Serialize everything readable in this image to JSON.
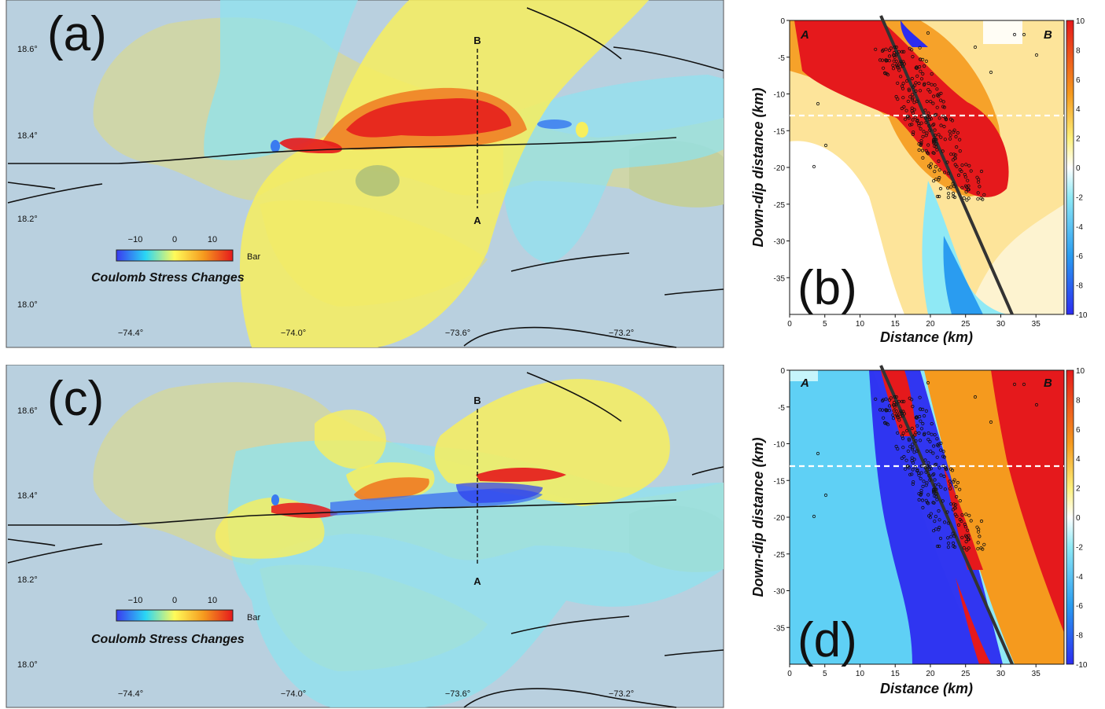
{
  "panels": {
    "a": {
      "label": "(a)",
      "colorbar_ticks": [
        "−10",
        "0",
        "10"
      ],
      "colorbar_unit": "Bar",
      "colorbar_title": "Coulomb Stress Changes"
    },
    "c": {
      "label": "(c)",
      "colorbar_ticks": [
        "−10",
        "0",
        "10"
      ],
      "colorbar_unit": "Bar",
      "colorbar_title": "Coulomb Stress Changes"
    },
    "b": {
      "label": "(b)"
    },
    "d": {
      "label": "(d)"
    }
  },
  "map": {
    "lat_labels": [
      "18.6°",
      "18.4°",
      "18.2°",
      "18.0°"
    ],
    "lon_labels": [
      "−74.4°",
      "−74.0°",
      "−73.6°",
      "−73.2°"
    ],
    "profile_start": "A",
    "profile_end": "B"
  },
  "section": {
    "xlabel": "Distance (km)",
    "ylabel": "Down-dip distance (km)",
    "x_ticks": [
      "0",
      "5",
      "10",
      "15",
      "20",
      "25",
      "30",
      "35"
    ],
    "y_ticks": [
      "0",
      "-5",
      "-10",
      "-15",
      "-20",
      "-25",
      "-30",
      "-35"
    ],
    "end_left": "A",
    "end_right": "B",
    "colorbar_ticks": [
      "10",
      "8",
      "6",
      "4",
      "2",
      "0",
      "-2",
      "-4",
      "-6",
      "-8",
      "-10"
    ],
    "colors": {
      "max": "#e5191c",
      "zero": "#ffffff",
      "min": "#2c2cf0"
    }
  }
}
